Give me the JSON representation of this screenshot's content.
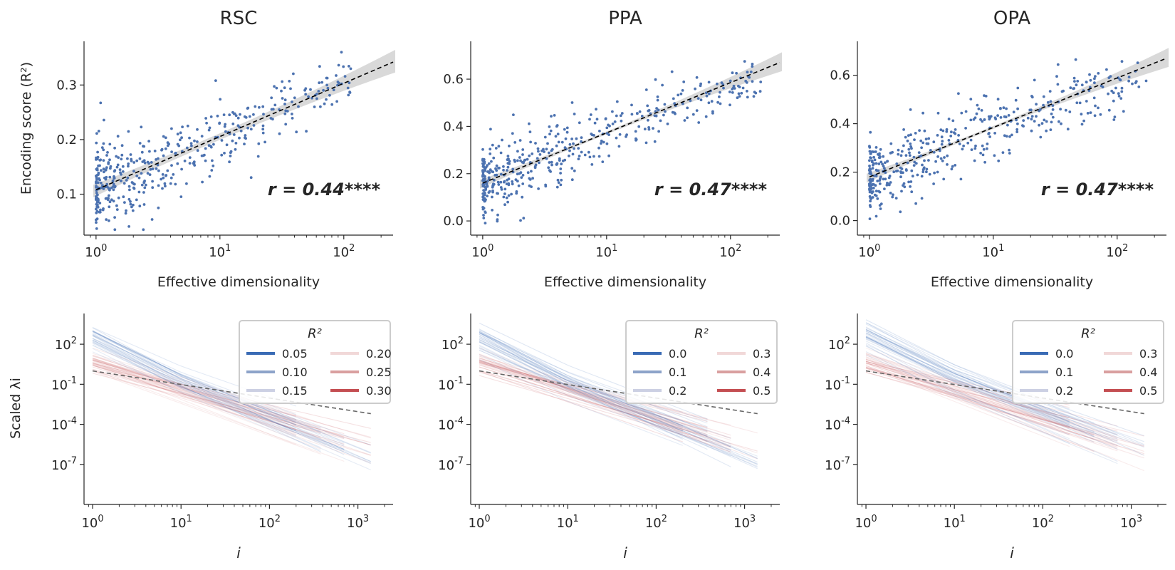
{
  "figure": {
    "xlabel_top": "Effective dimensionality",
    "ylabel_top": "Encoding score (R²)",
    "xlabel_bottom": "i",
    "ylabel_bottom": "Scaled λi",
    "legend_title": "R²",
    "colors": {
      "points": "#4c72b0",
      "fit": "#000000",
      "ci": "#cfcfcf",
      "blue": "#3a6bb5",
      "red": "#c44e52",
      "powerlaw": "#666666"
    }
  },
  "chart_data": [
    {
      "type": "scatter",
      "title": "RSC",
      "xlabel": "Effective dimensionality",
      "ylabel": "Encoding score (R²)",
      "xscale": "log",
      "xlim": [
        0.8,
        250
      ],
      "ylim": [
        0.025,
        0.38
      ],
      "yticks": [
        0.1,
        0.2,
        0.3
      ],
      "xticks": [
        "10^0",
        "10^1",
        "10^2"
      ],
      "fit": {
        "y_at_1": 0.108,
        "y_at_250": 0.342
      },
      "annotation": "r = 0.44****",
      "n_points": 430,
      "point_cloud": {
        "x_range": [
          1,
          120
        ],
        "y_noise": 0.035
      }
    },
    {
      "type": "scatter",
      "title": "PPA",
      "xlabel": "Effective dimensionality",
      "ylabel": "",
      "xscale": "log",
      "xlim": [
        0.8,
        250
      ],
      "ylim": [
        -0.06,
        0.76
      ],
      "yticks": [
        0.0,
        0.2,
        0.4,
        0.6
      ],
      "xticks": [
        "10^0",
        "10^1",
        "10^2"
      ],
      "fit": {
        "y_at_1": 0.16,
        "y_at_250": 0.67
      },
      "annotation": "r = 0.47****",
      "n_points": 430,
      "point_cloud": {
        "x_range": [
          1,
          180
        ],
        "y_noise": 0.07
      }
    },
    {
      "type": "scatter",
      "title": "OPA",
      "xlabel": "Effective dimensionality",
      "ylabel": "",
      "xscale": "log",
      "xlim": [
        0.8,
        250
      ],
      "ylim": [
        -0.06,
        0.74
      ],
      "yticks": [
        0.0,
        0.2,
        0.4,
        0.6
      ],
      "xticks": [
        "10^0",
        "10^1",
        "10^2"
      ],
      "fit": {
        "y_at_1": 0.18,
        "y_at_250": 0.67
      },
      "annotation": "r = 0.47****",
      "n_points": 430,
      "point_cloud": {
        "x_range": [
          1,
          180
        ],
        "y_noise": 0.07
      }
    },
    {
      "type": "line",
      "title": "",
      "xlabel": "i",
      "ylabel": "Scaled λi",
      "xscale": "log",
      "yscale": "log",
      "xlim": [
        0.8,
        2500
      ],
      "ylim_exp": [
        -10,
        4.3
      ],
      "yticks": [
        "10^2",
        "10^-1",
        "10^-4",
        "10^-7"
      ],
      "xticks": [
        "10^0",
        "10^1",
        "10^2",
        "10^3"
      ],
      "legend": {
        "title": "R²",
        "placement": "top-right",
        "entries": [
          "0.05",
          "0.10",
          "0.15",
          "0.20",
          "0.25",
          "0.30"
        ]
      },
      "powerlaw": {
        "exp_at_1": 0.0,
        "exp_at_1400": -3.2
      },
      "n_curves": 70
    },
    {
      "type": "line",
      "title": "",
      "xlabel": "i",
      "ylabel": "",
      "xscale": "log",
      "yscale": "log",
      "xlim": [
        0.8,
        2500
      ],
      "ylim_exp": [
        -10,
        4.3
      ],
      "yticks": [
        "10^2",
        "10^-1",
        "10^-4",
        "10^-7"
      ],
      "xticks": [
        "10^0",
        "10^1",
        "10^2",
        "10^3"
      ],
      "legend": {
        "title": "R²",
        "placement": "top-right",
        "entries": [
          "0.0",
          "0.1",
          "0.2",
          "0.3",
          "0.4",
          "0.5"
        ]
      },
      "powerlaw": {
        "exp_at_1": 0.0,
        "exp_at_1400": -3.2
      },
      "n_curves": 70
    },
    {
      "type": "line",
      "title": "",
      "xlabel": "i",
      "ylabel": "",
      "xscale": "log",
      "yscale": "log",
      "xlim": [
        0.8,
        2500
      ],
      "ylim_exp": [
        -10,
        4.3
      ],
      "yticks": [
        "10^2",
        "10^-1",
        "10^-4",
        "10^-7"
      ],
      "xticks": [
        "10^0",
        "10^1",
        "10^2",
        "10^3"
      ],
      "legend": {
        "title": "R²",
        "placement": "top-right",
        "entries": [
          "0.0",
          "0.1",
          "0.2",
          "0.3",
          "0.4",
          "0.5"
        ]
      },
      "powerlaw": {
        "exp_at_1": 0.0,
        "exp_at_1400": -3.2
      },
      "n_curves": 70
    }
  ]
}
